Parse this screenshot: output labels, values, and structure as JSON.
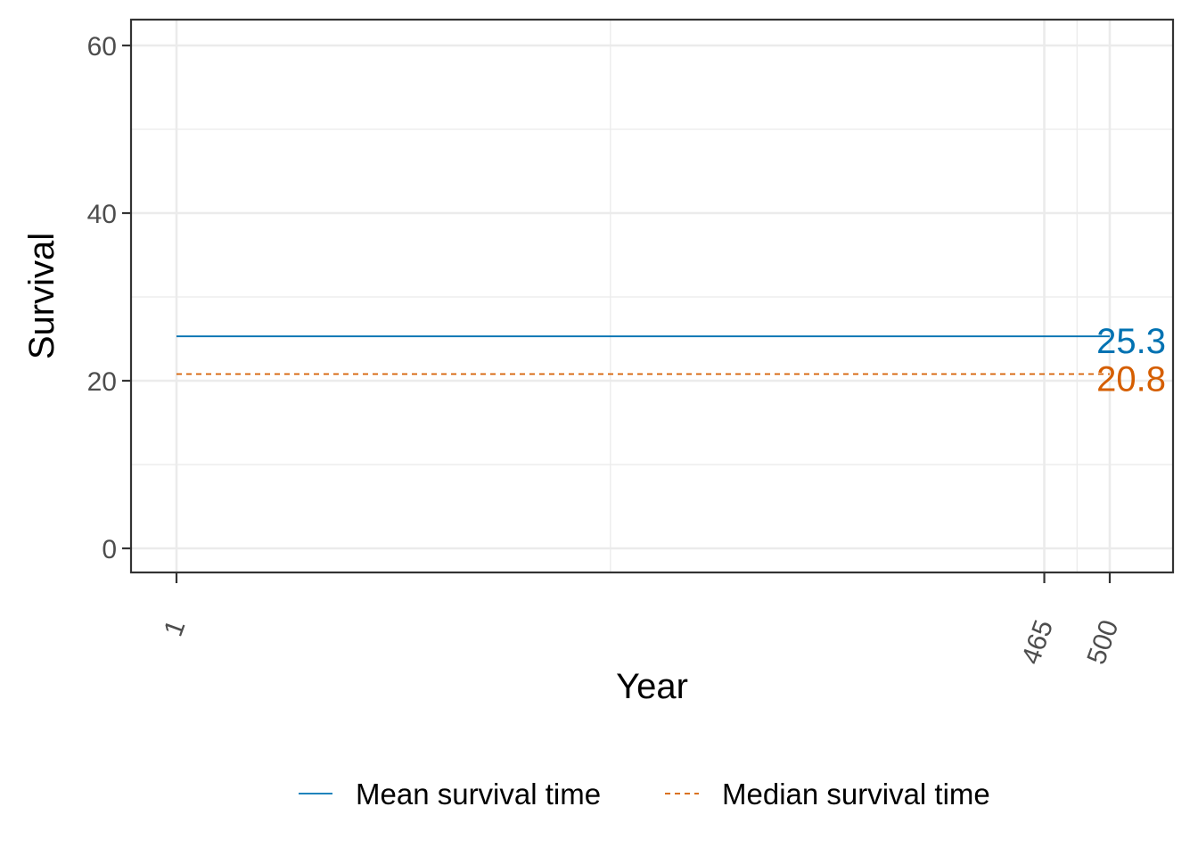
{
  "chart_data": {
    "type": "line",
    "xlabel": "Year",
    "ylabel": "Survival",
    "xlim": [
      1,
      500
    ],
    "ylim": [
      0,
      60
    ],
    "x_ticks": [
      1,
      465,
      500
    ],
    "y_ticks": [
      0,
      20,
      40,
      60
    ],
    "grid": true,
    "legend_position": "bottom",
    "series": [
      {
        "name": "Mean survival time",
        "x": [
          1,
          500
        ],
        "values": [
          25.3,
          25.3
        ],
        "color": "#0072B2",
        "linestyle": "solid",
        "end_label": "25.3"
      },
      {
        "name": "Median survival time",
        "x": [
          1,
          500
        ],
        "values": [
          20.8,
          20.8
        ],
        "color": "#D55E00",
        "linestyle": "dashed",
        "end_label": "20.8"
      }
    ]
  }
}
